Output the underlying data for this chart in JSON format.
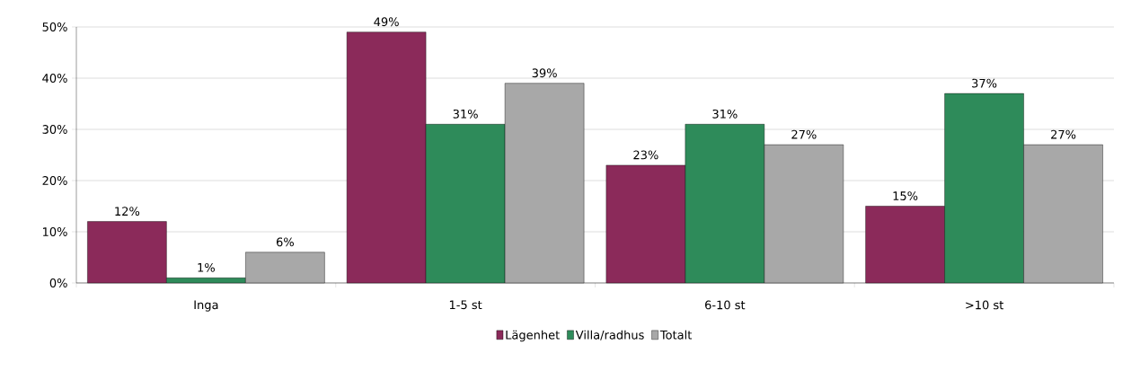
{
  "chart_data": {
    "type": "bar",
    "categories": [
      "Inga",
      "1-5 st",
      "6-10 st",
      ">10 st"
    ],
    "series": [
      {
        "name": "Lägenhet",
        "color": "#8b2a5a",
        "values": [
          12,
          49,
          23,
          15
        ],
        "value_labels": [
          "12%",
          "49%",
          "23%",
          "15%"
        ]
      },
      {
        "name": "Villa/radhus",
        "color": "#2e8b5a",
        "values": [
          1,
          31,
          31,
          37
        ],
        "value_labels": [
          "1%",
          "31%",
          "31%",
          "37%"
        ]
      },
      {
        "name": "Totalt",
        "color": "#a8a8a8",
        "values": [
          6,
          39,
          27,
          27
        ],
        "value_labels": [
          "6%",
          "39%",
          "27%",
          "27%"
        ]
      }
    ],
    "ylim": [
      0,
      50
    ],
    "yticks": [
      {
        "value": 0,
        "label": "0%"
      },
      {
        "value": 10,
        "label": "10%"
      },
      {
        "value": 20,
        "label": "20%"
      },
      {
        "value": 30,
        "label": "30%"
      },
      {
        "value": 40,
        "label": "40%"
      },
      {
        "value": 50,
        "label": "50%"
      }
    ],
    "grid": "y",
    "legend": "bottom"
  }
}
